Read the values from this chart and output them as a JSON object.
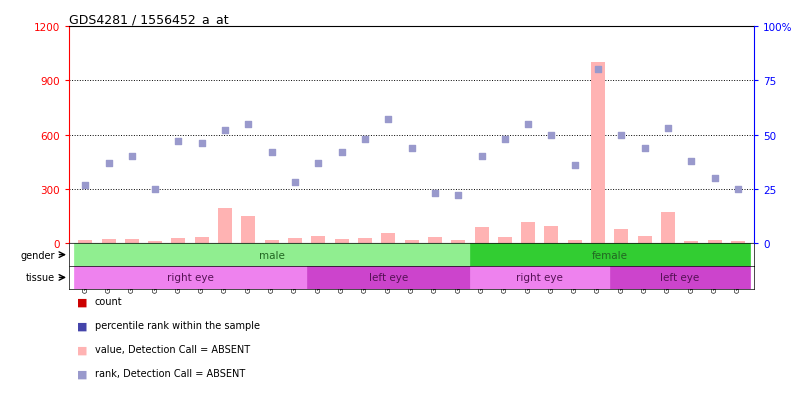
{
  "title": "GDS4281 / 1556452_a_at",
  "samples": [
    "GSM685471",
    "GSM685472",
    "GSM685473",
    "GSM685601",
    "GSM685650",
    "GSM685651",
    "GSM686961",
    "GSM686962",
    "GSM686988",
    "GSM686990",
    "GSM685522",
    "GSM685523",
    "GSM685603",
    "GSM686963",
    "GSM686986",
    "GSM686989",
    "GSM686991",
    "GSM685474",
    "GSM685602",
    "GSM686984",
    "GSM686985",
    "GSM686987",
    "GSM687004",
    "GSM685470",
    "GSM685475",
    "GSM685652",
    "GSM687001",
    "GSM687002",
    "GSM687003"
  ],
  "count_values": [
    18,
    25,
    22,
    12,
    30,
    35,
    195,
    150,
    18,
    30,
    40,
    22,
    28,
    55,
    18,
    35,
    18,
    90,
    35,
    120,
    95,
    18,
    1000,
    80,
    40,
    175,
    12,
    20,
    15
  ],
  "rank_values": [
    27,
    37,
    40,
    25,
    47,
    46,
    52,
    55,
    42,
    28,
    37,
    42,
    48,
    57,
    44,
    23,
    22,
    40,
    48,
    55,
    50,
    36,
    80,
    50,
    44,
    53,
    38,
    30,
    25
  ],
  "count_absent": [
    true,
    true,
    true,
    true,
    true,
    true,
    true,
    true,
    true,
    true,
    true,
    true,
    true,
    true,
    true,
    true,
    true,
    true,
    true,
    true,
    true,
    true,
    true,
    true,
    true,
    true,
    true,
    true,
    true
  ],
  "rank_absent": [
    true,
    true,
    true,
    true,
    true,
    true,
    true,
    true,
    true,
    true,
    true,
    true,
    true,
    true,
    true,
    true,
    true,
    true,
    true,
    true,
    true,
    true,
    true,
    true,
    true,
    true,
    true,
    true,
    true
  ],
  "gender_groups": [
    {
      "label": "male",
      "start": 0,
      "end": 16,
      "color": "#90EE90"
    },
    {
      "label": "female",
      "start": 17,
      "end": 28,
      "color": "#32CD32"
    }
  ],
  "tissue_groups": [
    {
      "label": "right eye",
      "start": 0,
      "end": 9,
      "color": "#EE82EE"
    },
    {
      "label": "left eye",
      "start": 10,
      "end": 16,
      "color": "#CC44CC"
    },
    {
      "label": "right eye",
      "start": 17,
      "end": 22,
      "color": "#EE82EE"
    },
    {
      "label": "left eye",
      "start": 23,
      "end": 28,
      "color": "#CC44CC"
    }
  ],
  "ylim_left": [
    0,
    1200
  ],
  "ylim_right": [
    0,
    100
  ],
  "yticks_left": [
    0,
    300,
    600,
    900,
    1200
  ],
  "yticks_right": [
    0,
    25,
    50,
    75,
    100
  ],
  "bar_color_absent": "#FFB3B3",
  "dot_color_absent": "#9999CC",
  "legend_items": [
    {
      "label": "count",
      "color": "#CC0000"
    },
    {
      "label": "percentile rank within the sample",
      "color": "#4444AA"
    },
    {
      "label": "value, Detection Call = ABSENT",
      "color": "#FFB3B3"
    },
    {
      "label": "rank, Detection Call = ABSENT",
      "color": "#9999CC"
    }
  ]
}
